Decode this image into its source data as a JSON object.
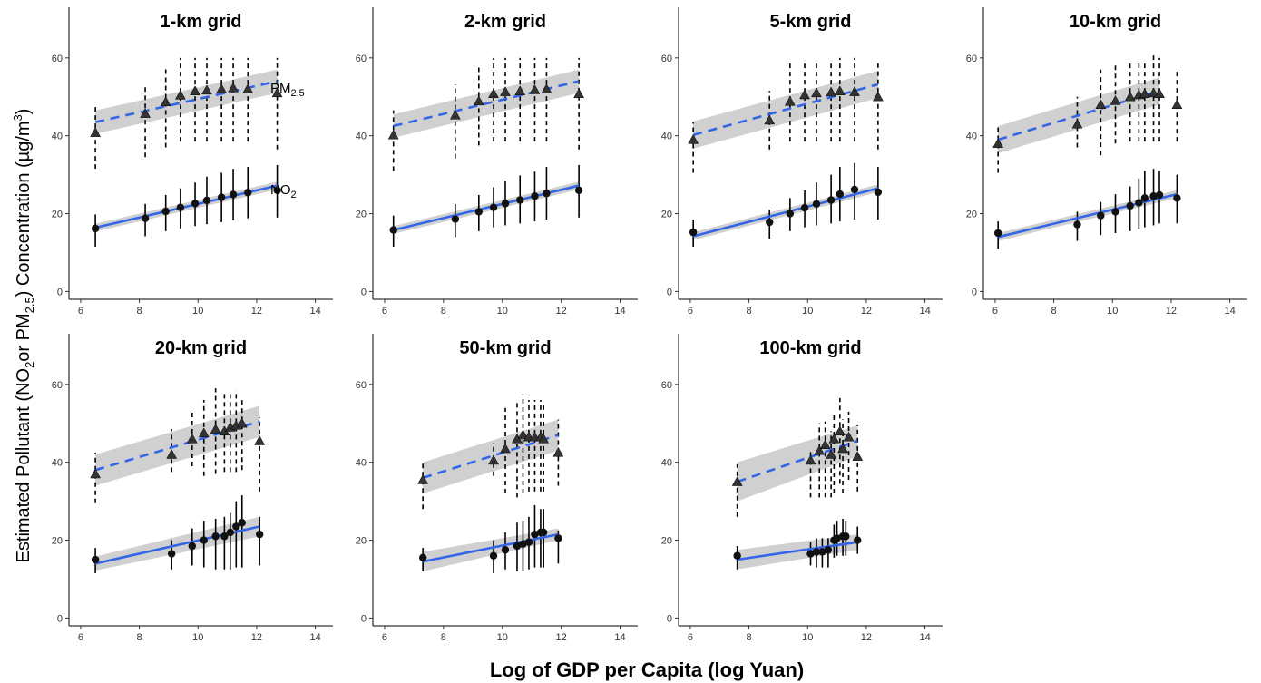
{
  "figure": {
    "xlabel": "Log of GDP per Capita (log Yuan)",
    "ylabel_parts": [
      "Estimated Pollutant (NO",
      "2",
      "or PM",
      "2.5",
      ") Concentration (µg/m",
      "3",
      ")"
    ],
    "series_labels": {
      "pm25": {
        "base": "PM",
        "sub": "2.5"
      },
      "no2": {
        "base": "NO",
        "sub": "2"
      }
    },
    "colors": {
      "fit_line": "#3366e6",
      "ci_band": "#c8c8c8",
      "points": "#111111",
      "pm_point_fill": "#333333"
    }
  },
  "chart_data": [
    {
      "type": "scatter",
      "title": "1-km grid",
      "xlim": [
        5.6,
        14.6
      ],
      "ylim": [
        -2,
        73
      ],
      "xticks": [
        6,
        8,
        10,
        12,
        14
      ],
      "yticks": [
        0,
        20,
        40,
        60
      ],
      "series": [
        {
          "name": "PM2.5",
          "marker": "triangle",
          "line": "dashed",
          "x": [
            6.5,
            8.2,
            8.9,
            9.4,
            9.9,
            10.3,
            10.8,
            11.2,
            11.7,
            12.7
          ],
          "y": [
            40.8,
            45.7,
            48.7,
            50.4,
            51.5,
            51.7,
            52.0,
            52.3,
            52.0,
            51.0
          ],
          "err_low": [
            31.5,
            34.5,
            37.0,
            38.5,
            38.5,
            38.5,
            38.5,
            38.5,
            38.5,
            36.5
          ],
          "err_high": [
            47.5,
            53.2,
            57.5,
            60.0,
            60.0,
            60.0,
            60.0,
            60.0,
            60.0,
            60.0
          ],
          "fit": {
            "x0": 6.5,
            "y0": 43.5,
            "x1": 12.7,
            "y1": 54.0,
            "ci0": 3.0,
            "ci1": 3.0
          }
        },
        {
          "name": "NO2",
          "marker": "circle",
          "line": "solid",
          "x": [
            6.5,
            8.2,
            8.9,
            9.4,
            9.9,
            10.3,
            10.8,
            11.2,
            11.7,
            12.7
          ],
          "y": [
            16.2,
            18.8,
            20.6,
            21.6,
            22.6,
            23.4,
            24.2,
            24.9,
            25.4,
            26.0
          ],
          "err_low": [
            11.5,
            14.2,
            15.5,
            16.2,
            16.8,
            17.3,
            17.8,
            18.3,
            18.8,
            19.0
          ],
          "err_high": [
            19.8,
            22.5,
            24.8,
            26.5,
            28.0,
            29.5,
            30.5,
            31.5,
            32.0,
            32.5
          ],
          "fit": {
            "x0": 6.5,
            "y0": 16.4,
            "x1": 12.7,
            "y1": 27.2,
            "ci0": 1.0,
            "ci1": 1.0
          }
        }
      ]
    },
    {
      "type": "scatter",
      "title": "2-km grid",
      "xlim": [
        5.6,
        14.6
      ],
      "ylim": [
        -2,
        73
      ],
      "xticks": [
        6,
        8,
        10,
        12,
        14
      ],
      "yticks": [
        0,
        20,
        40,
        60
      ],
      "series": [
        {
          "name": "PM2.5",
          "marker": "triangle",
          "line": "dashed",
          "x": [
            6.3,
            8.4,
            9.2,
            9.7,
            10.1,
            10.6,
            11.1,
            11.5,
            12.6
          ],
          "y": [
            40.2,
            45.3,
            48.9,
            50.8,
            51.3,
            51.5,
            51.8,
            52.0,
            50.8
          ],
          "err_low": [
            31.0,
            34.2,
            37.5,
            38.5,
            38.5,
            38.5,
            38.5,
            38.5,
            36.5
          ],
          "err_high": [
            46.5,
            53.2,
            57.5,
            60.0,
            60.0,
            60.0,
            60.0,
            60.0,
            60.0
          ],
          "fit": {
            "x0": 6.3,
            "y0": 42.5,
            "x1": 12.6,
            "y1": 54.0,
            "ci0": 3.0,
            "ci1": 3.0
          }
        },
        {
          "name": "NO2",
          "marker": "circle",
          "line": "solid",
          "x": [
            6.3,
            8.4,
            9.2,
            9.7,
            10.1,
            10.6,
            11.1,
            11.5,
            12.6
          ],
          "y": [
            15.8,
            18.6,
            20.5,
            21.6,
            22.6,
            23.5,
            24.5,
            25.2,
            26.0
          ],
          "err_low": [
            11.5,
            14.0,
            15.5,
            16.5,
            17.0,
            17.5,
            18.0,
            18.5,
            19.0
          ],
          "err_high": [
            19.5,
            22.5,
            24.8,
            26.8,
            28.5,
            29.8,
            30.8,
            32.0,
            32.5
          ],
          "fit": {
            "x0": 6.3,
            "y0": 15.8,
            "x1": 12.6,
            "y1": 27.2,
            "ci0": 1.0,
            "ci1": 1.0
          }
        }
      ]
    },
    {
      "type": "scatter",
      "title": "5-km grid",
      "xlim": [
        5.6,
        14.6
      ],
      "ylim": [
        -2,
        73
      ],
      "xticks": [
        6,
        8,
        10,
        12,
        14
      ],
      "yticks": [
        0,
        20,
        40,
        60
      ],
      "series": [
        {
          "name": "PM2.5",
          "marker": "triangle",
          "line": "dashed",
          "x": [
            6.1,
            8.7,
            9.4,
            9.9,
            10.3,
            10.8,
            11.1,
            11.6,
            12.4
          ],
          "y": [
            39.0,
            44.0,
            48.8,
            50.5,
            51.0,
            51.2,
            51.5,
            51.3,
            50.0
          ],
          "err_low": [
            30.5,
            36.5,
            38.5,
            38.5,
            38.5,
            38.5,
            38.5,
            38.5,
            36.5
          ],
          "err_high": [
            43.5,
            51.5,
            59.0,
            59.5,
            59.5,
            59.5,
            60.0,
            60.0,
            59.5
          ],
          "fit": {
            "x0": 6.1,
            "y0": 40.2,
            "x1": 12.4,
            "y1": 53.2,
            "ci0": 3.5,
            "ci1": 3.5
          }
        },
        {
          "name": "NO2",
          "marker": "circle",
          "line": "solid",
          "x": [
            6.1,
            8.7,
            9.4,
            9.9,
            10.3,
            10.8,
            11.1,
            11.6,
            12.4
          ],
          "y": [
            15.2,
            17.8,
            20.0,
            21.5,
            22.5,
            23.5,
            25.0,
            26.2,
            25.5
          ],
          "err_low": [
            11.5,
            13.5,
            15.5,
            16.5,
            17.0,
            17.5,
            18.0,
            18.5,
            18.5
          ],
          "err_high": [
            18.5,
            21.0,
            24.0,
            26.0,
            28.0,
            30.0,
            32.0,
            33.0,
            32.0
          ],
          "fit": {
            "x0": 6.1,
            "y0": 14.2,
            "x1": 12.4,
            "y1": 26.5,
            "ci0": 1.0,
            "ci1": 1.0
          }
        }
      ]
    },
    {
      "type": "scatter",
      "title": "10-km grid",
      "xlim": [
        5.6,
        14.6
      ],
      "ylim": [
        -2,
        73
      ],
      "xticks": [
        6,
        8,
        10,
        12,
        14
      ],
      "yticks": [
        0,
        20,
        40,
        60
      ],
      "series": [
        {
          "name": "PM2.5",
          "marker": "triangle",
          "line": "dashed",
          "x": [
            6.1,
            8.8,
            9.6,
            10.1,
            10.6,
            10.9,
            11.1,
            11.4,
            11.6,
            12.2
          ],
          "y": [
            38.0,
            43.0,
            48.0,
            49.0,
            50.0,
            50.5,
            50.8,
            51.0,
            50.8,
            48.0
          ],
          "err_low": [
            30.5,
            37.0,
            35.0,
            38.0,
            38.5,
            38.5,
            38.5,
            38.5,
            38.5,
            38.5
          ],
          "err_high": [
            43.0,
            50.0,
            57.0,
            58.5,
            59.0,
            59.0,
            59.5,
            61.0,
            60.0,
            57.0
          ],
          "fit": {
            "x0": 6.1,
            "y0": 39.0,
            "x1": 11.6,
            "y1": 51.5,
            "ci0": 3.5,
            "ci1": 3.5
          }
        },
        {
          "name": "NO2",
          "marker": "circle",
          "line": "solid",
          "x": [
            6.1,
            8.8,
            9.6,
            10.1,
            10.6,
            10.9,
            11.1,
            11.4,
            11.6,
            12.2
          ],
          "y": [
            15.0,
            17.2,
            19.5,
            20.5,
            22.0,
            22.8,
            24.0,
            24.5,
            24.8,
            24.0
          ],
          "err_low": [
            11.0,
            13.0,
            14.5,
            15.0,
            15.5,
            16.0,
            16.5,
            17.0,
            17.5,
            17.5
          ],
          "err_high": [
            18.0,
            20.5,
            23.0,
            25.0,
            27.0,
            29.0,
            31.0,
            31.5,
            31.0,
            30.0
          ],
          "fit": {
            "x0": 6.1,
            "y0": 14.0,
            "x1": 12.2,
            "y1": 25.0,
            "ci0": 1.0,
            "ci1": 1.0
          }
        }
      ]
    },
    {
      "type": "scatter",
      "title": "20-km grid",
      "xlim": [
        5.6,
        14.6
      ],
      "ylim": [
        -2,
        73
      ],
      "xticks": [
        6,
        8,
        10,
        12,
        14
      ],
      "yticks": [
        0,
        20,
        40,
        60
      ],
      "series": [
        {
          "name": "PM2.5",
          "marker": "triangle",
          "line": "dashed",
          "x": [
            6.5,
            9.1,
            9.8,
            10.2,
            10.6,
            10.9,
            11.1,
            11.3,
            11.5,
            12.1
          ],
          "y": [
            37.0,
            42.0,
            46.0,
            47.5,
            48.5,
            48.0,
            49.0,
            49.5,
            50.0,
            45.5
          ],
          "err_low": [
            29.5,
            37.5,
            39.0,
            36.5,
            37.0,
            37.5,
            37.5,
            37.5,
            38.0,
            32.5
          ],
          "err_high": [
            42.5,
            48.5,
            53.5,
            56.0,
            59.0,
            58.0,
            58.0,
            58.5,
            56.5,
            51.5
          ],
          "fit": {
            "x0": 6.5,
            "y0": 38.0,
            "x1": 12.1,
            "y1": 50.5,
            "ci0": 4.0,
            "ci1": 4.0
          }
        },
        {
          "name": "NO2",
          "marker": "circle",
          "line": "solid",
          "x": [
            6.5,
            9.1,
            9.8,
            10.2,
            10.6,
            10.9,
            11.1,
            11.3,
            11.5,
            12.1
          ],
          "y": [
            15.0,
            16.5,
            18.5,
            20.0,
            21.0,
            21.0,
            22.0,
            23.5,
            24.5,
            21.5
          ],
          "err_low": [
            11.5,
            12.5,
            13.5,
            13.0,
            12.5,
            12.5,
            12.5,
            13.0,
            13.0,
            13.5
          ],
          "err_high": [
            18.0,
            20.0,
            23.0,
            25.0,
            25.5,
            26.0,
            27.0,
            30.0,
            31.5,
            26.0
          ],
          "fit": {
            "x0": 6.5,
            "y0": 14.0,
            "x1": 12.1,
            "y1": 23.5,
            "ci0": 1.8,
            "ci1": 2.5
          }
        }
      ]
    },
    {
      "type": "scatter",
      "title": "50-km grid",
      "xlim": [
        5.6,
        14.6
      ],
      "ylim": [
        -2,
        73
      ],
      "xticks": [
        6,
        8,
        10,
        12,
        14
      ],
      "yticks": [
        0,
        20,
        40,
        60
      ],
      "series": [
        {
          "name": "PM2.5",
          "marker": "triangle",
          "line": "dashed",
          "x": [
            7.3,
            9.7,
            10.1,
            10.5,
            10.7,
            10.9,
            11.1,
            11.3,
            11.4,
            11.9
          ],
          "y": [
            35.5,
            40.5,
            43.5,
            46.0,
            47.0,
            46.5,
            46.5,
            46.5,
            46.0,
            42.5
          ],
          "err_low": [
            28.0,
            36.5,
            32.0,
            31.0,
            32.0,
            32.5,
            32.5,
            32.5,
            32.5,
            34.0
          ],
          "err_high": [
            40.0,
            45.0,
            54.0,
            55.5,
            57.5,
            56.0,
            56.0,
            56.0,
            55.5,
            51.0
          ],
          "fit": {
            "x0": 7.3,
            "y0": 36.0,
            "x1": 11.9,
            "y1": 47.0,
            "ci0": 4.0,
            "ci1": 4.0
          }
        },
        {
          "name": "NO2",
          "marker": "circle",
          "line": "solid",
          "x": [
            7.3,
            9.7,
            10.1,
            10.5,
            10.7,
            10.9,
            11.1,
            11.3,
            11.4,
            11.9
          ],
          "y": [
            15.5,
            16.0,
            17.5,
            18.5,
            19.0,
            19.5,
            21.5,
            22.0,
            22.0,
            20.5
          ],
          "err_low": [
            12.0,
            11.5,
            12.5,
            12.0,
            12.0,
            12.5,
            13.0,
            13.0,
            13.0,
            14.0
          ],
          "err_high": [
            18.0,
            20.0,
            22.0,
            24.5,
            25.0,
            26.0,
            29.0,
            28.0,
            28.0,
            22.5
          ],
          "fit": {
            "x0": 7.3,
            "y0": 14.5,
            "x1": 11.9,
            "y1": 21.5,
            "ci0": 2.5,
            "ci1": 1.5
          }
        }
      ]
    },
    {
      "type": "scatter",
      "title": "100-km grid",
      "xlim": [
        5.6,
        14.6
      ],
      "ylim": [
        -2,
        73
      ],
      "xticks": [
        6,
        8,
        10,
        12,
        14
      ],
      "yticks": [
        0,
        20,
        40,
        60
      ],
      "series": [
        {
          "name": "PM2.5",
          "marker": "triangle",
          "line": "dashed",
          "x": [
            7.6,
            10.1,
            10.4,
            10.6,
            10.8,
            10.9,
            11.1,
            11.2,
            11.4,
            11.7
          ],
          "y": [
            35.0,
            40.5,
            43.0,
            44.5,
            42.0,
            46.0,
            48.0,
            43.5,
            46.5,
            41.5
          ],
          "err_low": [
            26.0,
            31.0,
            31.0,
            31.0,
            31.0,
            32.0,
            34.5,
            32.0,
            35.5,
            32.5
          ],
          "err_high": [
            39.5,
            43.5,
            50.0,
            50.5,
            48.0,
            52.5,
            56.5,
            51.0,
            53.0,
            49.5
          ],
          "fit": {
            "x0": 7.6,
            "y0": 35.0,
            "x1": 11.7,
            "y1": 45.5,
            "ci0": 5.0,
            "ci1": 4.0
          }
        },
        {
          "name": "NO2",
          "marker": "circle",
          "line": "solid",
          "x": [
            7.6,
            10.1,
            10.3,
            10.5,
            10.7,
            10.9,
            11.0,
            11.2,
            11.3,
            11.7
          ],
          "y": [
            16.0,
            16.5,
            17.0,
            17.0,
            17.5,
            20.0,
            20.5,
            21.0,
            21.0,
            20.0
          ],
          "err_low": [
            12.5,
            13.5,
            13.0,
            13.0,
            13.0,
            15.5,
            16.0,
            16.0,
            16.0,
            16.5
          ],
          "err_high": [
            18.5,
            19.5,
            20.5,
            20.5,
            20.5,
            24.0,
            25.0,
            25.5,
            25.0,
            23.5
          ],
          "fit": {
            "x0": 7.6,
            "y0": 15.0,
            "x1": 11.7,
            "y1": 19.5,
            "ci0": 2.5,
            "ci1": 2.0
          }
        }
      ]
    }
  ]
}
